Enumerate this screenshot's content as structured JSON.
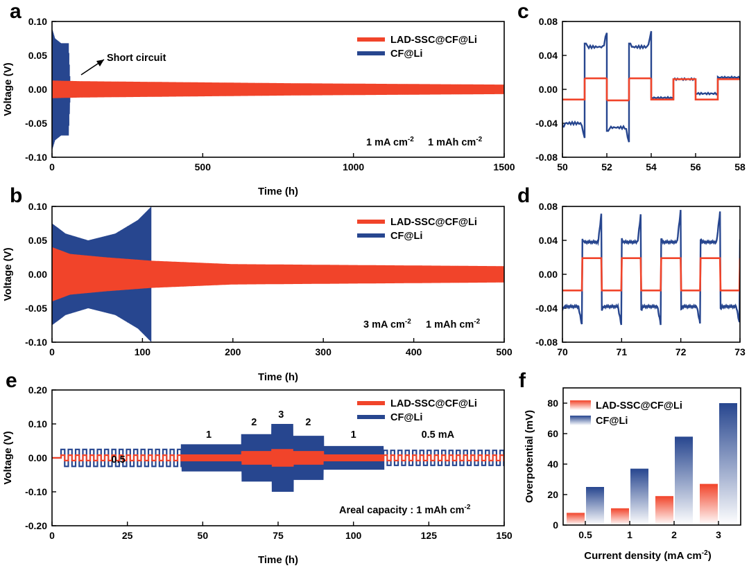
{
  "colors": {
    "lad": "#f1442a",
    "cf": "#27468f",
    "lad_light": "#ffd9d4",
    "cf_light": "#dfe6f3"
  },
  "chart_data": [
    {
      "id": "a",
      "panel": "a",
      "type": "line",
      "xlabel": "Time (h)",
      "ylabel": "Voltage (V)",
      "xlim": [
        0,
        1500
      ],
      "ylim": [
        -0.1,
        0.1
      ],
      "xticks": [
        0,
        500,
        1000,
        1500
      ],
      "xtick_labels": [
        "0",
        "500",
        "1000",
        "1500"
      ],
      "yticks": [
        0.1,
        0.05,
        0.0,
        -0.05,
        -0.1
      ],
      "ytick_labels": [
        "0.10",
        "0.05",
        "0.00",
        "-0.05",
        "-0.10"
      ],
      "legend": [
        "LAD-SSC@CF@Li",
        "CF@Li"
      ],
      "annotation": "Short circuit",
      "condition": {
        "current": "1 mA cm",
        "current_exp": "-2",
        "capacity": "1 mAh cm",
        "capacity_exp": "-2"
      },
      "series": [
        {
          "name": "CF@Li",
          "envelope": [
            [
              0,
              0.09
            ],
            [
              10,
              0.075
            ],
            [
              30,
              0.068
            ],
            [
              55,
              0.068
            ],
            [
              60,
              0.015
            ],
            [
              1500,
              0.0
            ]
          ]
        },
        {
          "name": "LAD-SSC@CF@Li",
          "envelope": [
            [
              0,
              0.013
            ],
            [
              100,
              0.012
            ],
            [
              800,
              0.009
            ],
            [
              1500,
              0.007
            ]
          ]
        }
      ]
    },
    {
      "id": "b",
      "panel": "b",
      "type": "line",
      "xlabel": "Time (h)",
      "ylabel": "Voltage (V)",
      "xlim": [
        0,
        500
      ],
      "ylim": [
        -0.1,
        0.1
      ],
      "xticks": [
        0,
        100,
        200,
        300,
        400,
        500
      ],
      "xtick_labels": [
        "0",
        "100",
        "200",
        "300",
        "400",
        "500"
      ],
      "yticks": [
        0.1,
        0.05,
        0.0,
        -0.05,
        -0.1
      ],
      "ytick_labels": [
        "0.10",
        "0.05",
        "0.00",
        "-0.05",
        "-0.10"
      ],
      "legend": [
        "LAD-SSC@CF@Li",
        "CF@Li"
      ],
      "condition": {
        "current": "3 mA cm",
        "current_exp": "-2",
        "capacity": "1 mAh cm",
        "capacity_exp": "-2"
      },
      "series": [
        {
          "name": "CF@Li",
          "envelope": [
            [
              0,
              0.075
            ],
            [
              15,
              0.06
            ],
            [
              40,
              0.05
            ],
            [
              70,
              0.06
            ],
            [
              95,
              0.08
            ],
            [
              110,
              0.1
            ]
          ]
        },
        {
          "name": "LAD-SSC@CF@Li",
          "envelope": [
            [
              0,
              0.04
            ],
            [
              20,
              0.03
            ],
            [
              60,
              0.025
            ],
            [
              110,
              0.02
            ],
            [
              200,
              0.015
            ],
            [
              500,
              0.012
            ]
          ]
        }
      ]
    },
    {
      "id": "c",
      "panel": "c",
      "type": "line",
      "xlim": [
        50,
        58
      ],
      "ylim": [
        -0.08,
        0.08
      ],
      "xticks": [
        50,
        52,
        54,
        56,
        58
      ],
      "xtick_labels": [
        "50",
        "52",
        "54",
        "56",
        "58"
      ],
      "yticks": [
        0.08,
        0.04,
        0.0,
        -0.04,
        -0.08
      ],
      "ytick_labels": [
        "0.08",
        "0.04",
        "0.00",
        "-0.04",
        "-0.08"
      ],
      "series": [
        {
          "name": "CF@Li",
          "segments": [
            [
              50,
              51,
              -0.04
            ],
            [
              51,
              52,
              0.05
            ],
            [
              52,
              53,
              -0.045
            ],
            [
              53,
              54,
              0.05
            ],
            [
              54,
              55,
              -0.01
            ],
            [
              55,
              56,
              0.012
            ],
            [
              56,
              57,
              -0.005
            ],
            [
              57,
              58,
              0.014
            ]
          ]
        },
        {
          "name": "LAD-SSC@CF@Li",
          "segments": [
            [
              50,
              51,
              -0.012
            ],
            [
              51,
              52,
              0.013
            ],
            [
              52,
              53,
              -0.013
            ],
            [
              53,
              54,
              0.013
            ],
            [
              54,
              55,
              -0.012
            ],
            [
              55,
              56,
              0.012
            ],
            [
              56,
              57,
              -0.012
            ],
            [
              57,
              58,
              0.012
            ]
          ]
        }
      ]
    },
    {
      "id": "d",
      "panel": "d",
      "type": "line",
      "xlim": [
        70,
        73
      ],
      "ylim": [
        -0.08,
        0.08
      ],
      "xticks": [
        70,
        71,
        72,
        73
      ],
      "xtick_labels": [
        "70",
        "71",
        "72",
        "73"
      ],
      "yticks": [
        0.08,
        0.04,
        0.0,
        -0.04,
        -0.08
      ],
      "ytick_labels": [
        "0.08",
        "0.04",
        "0.00",
        "-0.04",
        "-0.08"
      ],
      "series": [
        {
          "name": "CF@Li",
          "period": 0.667,
          "first_switch": 70.33,
          "amplitude": 0.038,
          "spike": 0.075
        },
        {
          "name": "LAD-SSC@CF@Li",
          "period": 0.667,
          "first_switch": 70.33,
          "amplitude": 0.019
        }
      ]
    },
    {
      "id": "e",
      "panel": "e",
      "type": "line",
      "xlabel": "Time (h)",
      "ylabel": "Voltage (V)",
      "xlim": [
        0,
        150
      ],
      "ylim": [
        -0.2,
        0.2
      ],
      "xticks": [
        0,
        25,
        50,
        75,
        100,
        125,
        150
      ],
      "xtick_labels": [
        "0",
        "25",
        "50",
        "75",
        "100",
        "125",
        "150"
      ],
      "yticks": [
        0.2,
        0.1,
        0.0,
        -0.1,
        -0.2
      ],
      "ytick_labels": [
        "0.20",
        "0.10",
        "0.00",
        "-0.10",
        "-0.20"
      ],
      "legend": [
        "LAD-SSC@CF@Li",
        "CF@Li"
      ],
      "rate_labels": [
        "0.5",
        "1",
        "2",
        "3",
        "2",
        "1",
        "0.5 mA"
      ],
      "rate_label_x": [
        22,
        52,
        67,
        76,
        85,
        100,
        128
      ],
      "condition": {
        "capacity": "Areal capacity : 1 mAh cm",
        "capacity_exp": "-2"
      },
      "steps": [
        {
          "rate": "0.5",
          "x": [
            3,
            43
          ],
          "cf": 0.025,
          "lad": 0.008
        },
        {
          "rate": "1",
          "x": [
            43,
            63
          ],
          "cf": 0.04,
          "lad": 0.01
        },
        {
          "rate": "2",
          "x": [
            63,
            73
          ],
          "cf": 0.07,
          "lad": 0.02
        },
        {
          "rate": "3",
          "x": [
            73,
            80
          ],
          "cf": 0.1,
          "lad": 0.026
        },
        {
          "rate": "2",
          "x": [
            80,
            90
          ],
          "cf": 0.065,
          "lad": 0.02
        },
        {
          "rate": "1",
          "x": [
            90,
            110
          ],
          "cf": 0.035,
          "lad": 0.01
        },
        {
          "rate": "0.5",
          "x": [
            110,
            150
          ],
          "cf": 0.022,
          "lad": 0.008
        }
      ]
    },
    {
      "id": "f",
      "panel": "f",
      "type": "bar",
      "xlabel": "Current density (mA cm",
      "xlabel_exp": "-2",
      "xlabel_close": ")",
      "ylabel": "Overpotential (mV)",
      "ylim": [
        0,
        90
      ],
      "yticks": [
        0,
        20,
        40,
        60,
        80
      ],
      "ytick_labels": [
        "0",
        "20",
        "40",
        "60",
        "80"
      ],
      "categories": [
        "0.5",
        "1",
        "2",
        "3"
      ],
      "legend": [
        "LAD-SSC@CF@Li",
        "CF@Li"
      ],
      "series": [
        {
          "name": "LAD-SSC@CF@Li",
          "values": [
            8,
            11,
            19,
            27
          ]
        },
        {
          "name": "CF@Li",
          "values": [
            25,
            37,
            58,
            80
          ]
        }
      ]
    }
  ]
}
